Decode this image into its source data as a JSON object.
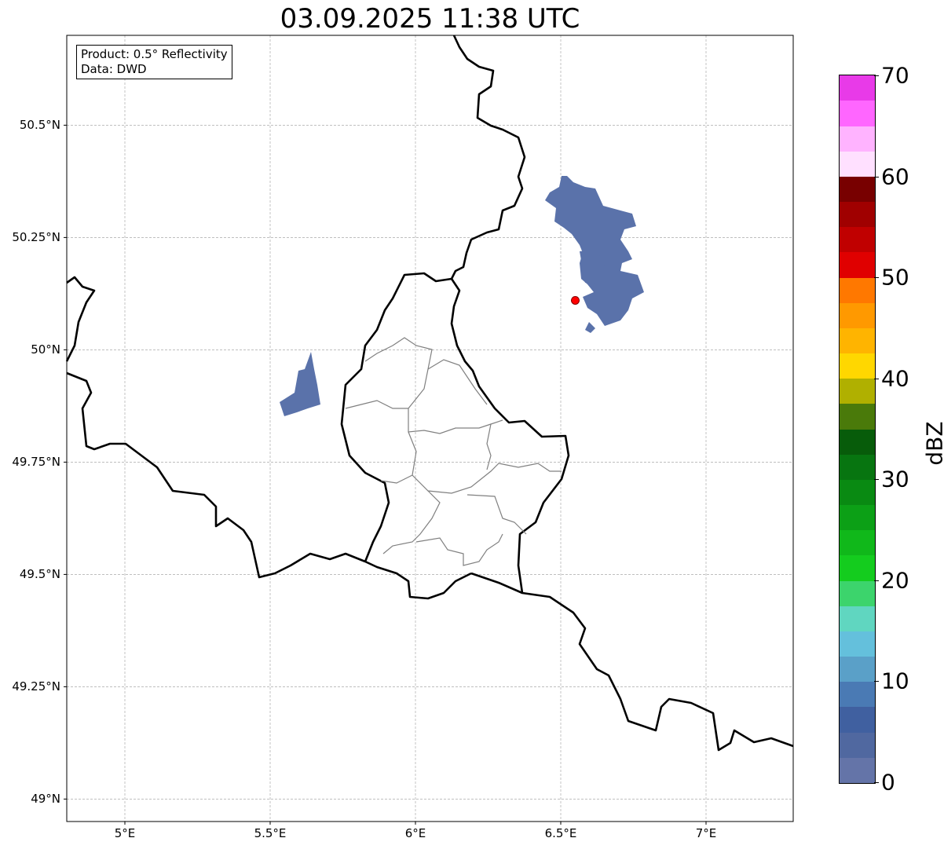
{
  "title": "03.09.2025 11:38 UTC",
  "info": {
    "product": "Product: 0.5° Reflectivity",
    "data": "Data: DWD"
  },
  "axes": {
    "x_ticks": [
      {
        "value": 5,
        "label": "5°E"
      },
      {
        "value": 5.5,
        "label": "5.5°E"
      },
      {
        "value": 6,
        "label": "6°E"
      },
      {
        "value": 6.5,
        "label": "6.5°E"
      },
      {
        "value": 7,
        "label": "7°E"
      }
    ],
    "y_ticks": [
      {
        "value": 50.5,
        "label": "50.5°N"
      },
      {
        "value": 50.25,
        "label": "50.25°N"
      },
      {
        "value": 50,
        "label": "50°N"
      },
      {
        "value": 49.75,
        "label": "49.75°N"
      },
      {
        "value": 49.5,
        "label": "49.5°N"
      },
      {
        "value": 49.25,
        "label": "49.25°N"
      },
      {
        "value": 49,
        "label": "49°N"
      }
    ],
    "lon_range": [
      4.8,
      7.3
    ],
    "lat_range": [
      48.95,
      50.7
    ]
  },
  "radar_site": {
    "lon": 6.55,
    "lat": 50.11,
    "color": "#ff0000"
  },
  "colorbar": {
    "label": "dBZ",
    "min": 0,
    "max": 70,
    "step": 2.5,
    "ticks": [
      {
        "value": 0,
        "label": "0"
      },
      {
        "value": 10,
        "label": "10"
      },
      {
        "value": 20,
        "label": "20"
      },
      {
        "value": 30,
        "label": "30"
      },
      {
        "value": 40,
        "label": "40"
      },
      {
        "value": 50,
        "label": "50"
      },
      {
        "value": 60,
        "label": "60"
      },
      {
        "value": 70,
        "label": "70"
      }
    ],
    "colors": [
      "#6474a8",
      "#5068a0",
      "#4060a0",
      "#4a7ab4",
      "#5aa0c8",
      "#64c0dc",
      "#60d6c0",
      "#3cd46c",
      "#14cc1e",
      "#10b81a",
      "#0ca016",
      "#098a12",
      "#077510",
      "#075c0a",
      "#4a7a0a",
      "#b0b000",
      "#ffd700",
      "#ffb400",
      "#ff9900",
      "#ff7800",
      "#e00000",
      "#c00000",
      "#a00000",
      "#780000",
      "#ffe0ff",
      "#ffb3ff",
      "#ff66ff",
      "#e83ae8"
    ]
  }
}
